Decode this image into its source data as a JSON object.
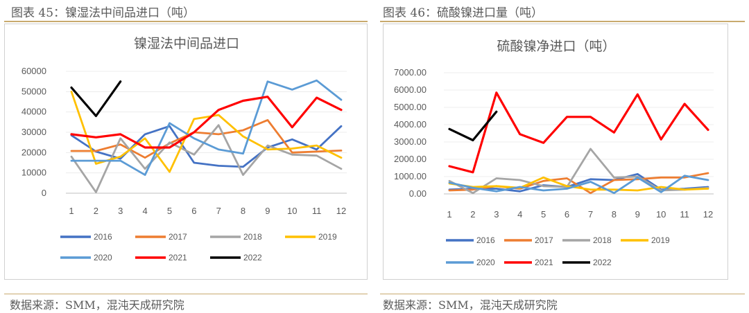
{
  "left": {
    "caption": "图表 45：镍湿法中间品进口（吨）",
    "source": "数据来源：SMM，混沌天成研究院",
    "chart_data": {
      "type": "line",
      "title": "镍湿法中间品进口",
      "x": [
        1,
        2,
        3,
        4,
        5,
        6,
        7,
        8,
        9,
        10,
        11,
        12
      ],
      "ylim": [
        0,
        60000
      ],
      "yticks": [
        "0",
        "10000",
        "20000",
        "30000",
        "40000",
        "50000",
        "60000"
      ],
      "legend_position": "bottom",
      "series": [
        {
          "name": "2016",
          "color": "#4472c4",
          "values": [
            28500,
            20500,
            17000,
            29000,
            33000,
            15000,
            13500,
            13000,
            22500,
            26500,
            21500,
            33000
          ]
        },
        {
          "name": "2017",
          "color": "#ed7d31",
          "values": [
            20800,
            20800,
            24000,
            17500,
            24500,
            30000,
            29000,
            31000,
            36000,
            20000,
            20500,
            21000
          ]
        },
        {
          "name": "2018",
          "color": "#a5a5a5",
          "values": [
            18000,
            500,
            27000,
            12000,
            25000,
            19000,
            33500,
            9000,
            23500,
            19000,
            18500,
            12000
          ]
        },
        {
          "name": "2019",
          "color": "#ffc000",
          "values": [
            50000,
            14500,
            18000,
            27000,
            10500,
            36500,
            38500,
            28000,
            21500,
            22000,
            23500,
            17500
          ]
        },
        {
          "name": "2020",
          "color": "#5b9bd5",
          "values": [
            16000,
            16000,
            16000,
            9000,
            34500,
            27000,
            21500,
            19500,
            55000,
            51000,
            55500,
            46000
          ]
        },
        {
          "name": "2021",
          "color": "#ff0000",
          "values": [
            29000,
            27500,
            29000,
            22500,
            22500,
            30000,
            41000,
            45500,
            47500,
            32500,
            47000,
            41000
          ]
        },
        {
          "name": "2022",
          "color": "#000000",
          "values": [
            52000,
            38000,
            55000,
            null,
            null,
            null,
            null,
            null,
            null,
            null,
            null,
            null
          ]
        }
      ]
    }
  },
  "right": {
    "caption": "图表 46：硫酸镍进口量（吨）",
    "source": "数据来源：SMM，混沌天成研究院",
    "chart_data": {
      "type": "line",
      "title": "硫酸镍净进口（吨）",
      "x": [
        1,
        2,
        3,
        4,
        5,
        6,
        7,
        8,
        9,
        10,
        11,
        12
      ],
      "ylim": [
        0,
        7000
      ],
      "yticks": [
        "0.00",
        "1000.00",
        "2000.00",
        "3000.00",
        "4000.00",
        "5000.00",
        "6000.00",
        "7000.00"
      ],
      "legend_position": "bottom",
      "series": [
        {
          "name": "2016",
          "color": "#4472c4",
          "values": [
            250,
            300,
            300,
            150,
            500,
            400,
            850,
            800,
            1150,
            250,
            300,
            400
          ]
        },
        {
          "name": "2017",
          "color": "#ed7d31",
          "values": [
            200,
            250,
            450,
            300,
            750,
            900,
            50,
            800,
            850,
            950,
            950,
            1200
          ]
        },
        {
          "name": "2018",
          "color": "#a5a5a5",
          "values": [
            750,
            50,
            900,
            800,
            450,
            400,
            2600,
            950,
            1000,
            200,
            250,
            350
          ]
        },
        {
          "name": "2019",
          "color": "#ffc000",
          "values": [
            600,
            400,
            450,
            350,
            950,
            450,
            250,
            250,
            200,
            400,
            250,
            300
          ]
        },
        {
          "name": "2020",
          "color": "#5b9bd5",
          "values": [
            650,
            350,
            150,
            400,
            200,
            300,
            700,
            50,
            950,
            100,
            1050,
            800
          ]
        },
        {
          "name": "2021",
          "color": "#ff0000",
          "values": [
            1600,
            1250,
            5850,
            3450,
            2950,
            4450,
            4450,
            3550,
            5750,
            3150,
            5200,
            3700
          ]
        },
        {
          "name": "2022",
          "color": "#000000",
          "values": [
            3750,
            3100,
            4750,
            null,
            null,
            null,
            null,
            null,
            null,
            null,
            null,
            null
          ]
        }
      ]
    }
  }
}
